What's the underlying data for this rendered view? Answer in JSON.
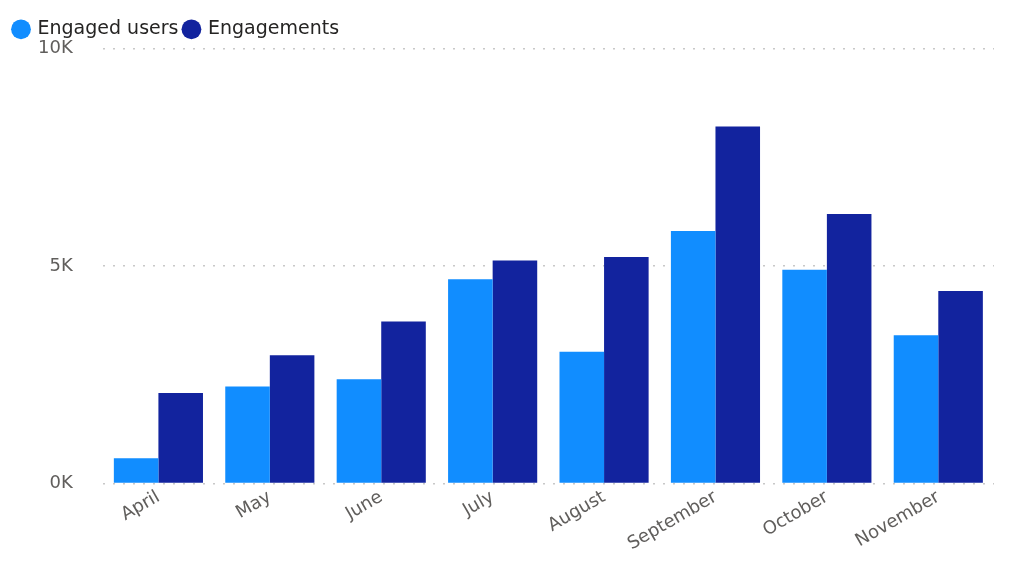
{
  "chart_data": {
    "type": "bar",
    "categories": [
      "April",
      "May",
      "June",
      "July",
      "August",
      "September",
      "October",
      "November"
    ],
    "series": [
      {
        "name": "Engaged users",
        "color": "#118dff",
        "values": [
          580,
          2230,
          2400,
          4700,
          3030,
          5810,
          4920,
          3410
        ]
      },
      {
        "name": "Engagements",
        "color": "#12239e",
        "values": [
          2080,
          2950,
          3730,
          5130,
          5210,
          8210,
          6200,
          4430
        ]
      }
    ],
    "ylim": [
      0,
      10000
    ],
    "yticks": [
      {
        "value": 0,
        "label": "0K"
      },
      {
        "value": 5000,
        "label": "5K"
      },
      {
        "value": 10000,
        "label": "10K"
      }
    ],
    "grid": "y",
    "legend": "top left",
    "marker": "circle"
  }
}
